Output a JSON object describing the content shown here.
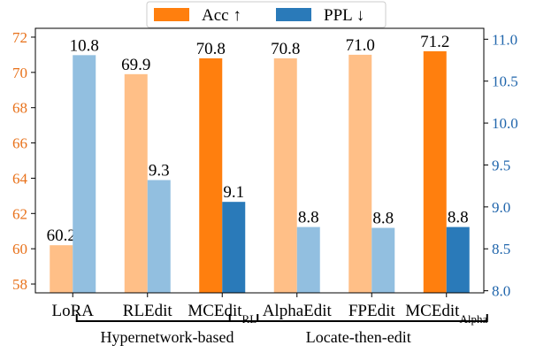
{
  "chart_data": {
    "type": "bar",
    "categories": [
      "LoRA",
      "RLEdit",
      "MCEdit_RL",
      "AlphaEdit",
      "FPEdit",
      "MCEdit_Alpha"
    ],
    "category_labels": [
      {
        "base": "LoRA",
        "sub": ""
      },
      {
        "base": "RLEdit",
        "sub": ""
      },
      {
        "base": "MCEdit",
        "sub": "RL"
      },
      {
        "base": "AlphaEdit",
        "sub": ""
      },
      {
        "base": "FPEdit",
        "sub": ""
      },
      {
        "base": "MCEdit",
        "sub": "Alpha"
      }
    ],
    "series": [
      {
        "name": "Acc ↑",
        "axis": "left",
        "values": [
          60.2,
          69.9,
          70.8,
          70.8,
          71.0,
          71.2
        ],
        "labels": [
          "60.2",
          "69.9",
          "70.8",
          "70.8",
          "71.0",
          "71.2"
        ],
        "highlight": [
          false,
          false,
          true,
          false,
          false,
          true
        ],
        "color": "#ff7f0e",
        "light_color": "#ffbf87"
      },
      {
        "name": "PPL ↓",
        "axis": "right",
        "values": [
          10.8,
          9.3,
          9.1,
          8.8,
          8.8,
          8.8
        ],
        "plot_values": [
          10.81,
          9.32,
          9.06,
          8.76,
          8.75,
          8.76
        ],
        "labels": [
          "10.8",
          "9.3",
          "9.1",
          "8.8",
          "8.8",
          "8.8"
        ],
        "highlight": [
          false,
          false,
          true,
          false,
          false,
          true
        ],
        "color": "#2a7ab9",
        "light_color": "#92bfe0"
      }
    ],
    "y_left": {
      "min": 57.5,
      "max": 72.5,
      "ticks": [
        "58",
        "60",
        "62",
        "64",
        "66",
        "68",
        "70",
        "72"
      ],
      "color": "#e8711a"
    },
    "y_right": {
      "min": 7.975,
      "max": 11.13,
      "ticks": [
        "8.0",
        "8.5",
        "9.0",
        "9.5",
        "10.0",
        "10.5",
        "11.0"
      ],
      "color": "#2166ac"
    },
    "groups": [
      {
        "label": "Hypernetwork-based",
        "from": 1,
        "to": 2
      },
      {
        "label": "Locate-then-edit",
        "from": 3,
        "to": 5
      }
    ],
    "legend_position": "top-center",
    "grid": false
  }
}
